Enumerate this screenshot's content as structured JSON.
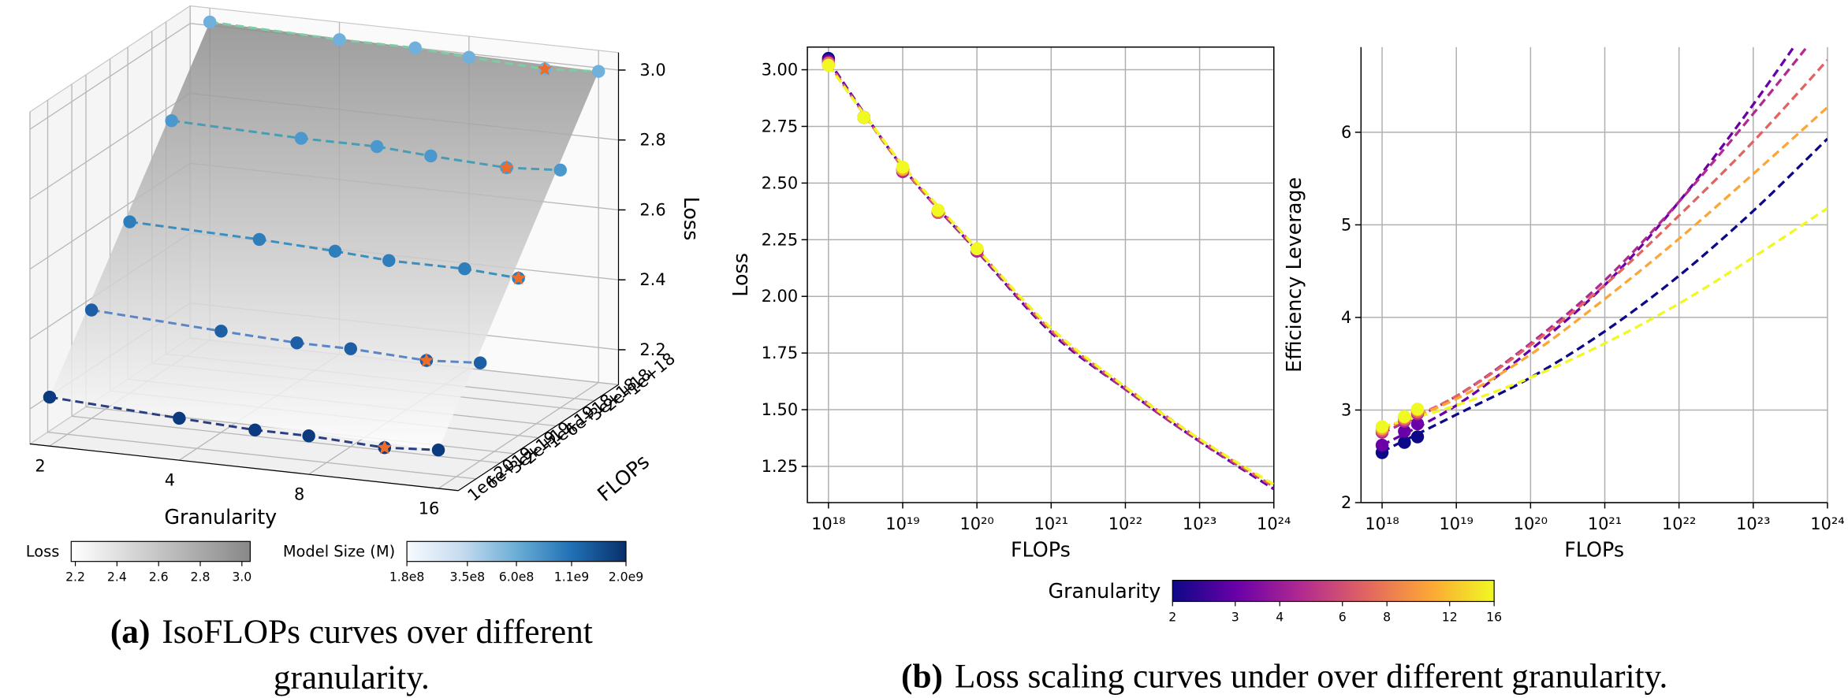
{
  "chart_data": [
    {
      "type": "scatter3d",
      "xlabel": "Granularity",
      "ylabel": "FLOPs",
      "zlabel": "Loss",
      "xscale": "log",
      "xlim": [
        1.8,
        17.8
      ],
      "xticks": [
        2,
        4,
        8,
        16
      ],
      "yscale": "log",
      "ylim": [
        1e+18,
        1e+20
      ],
      "yticks": [
        {
          "value": 1e+18,
          "label": "1e+18"
        },
        {
          "value": 2e+18,
          "label": "2e+18"
        },
        {
          "value": 3e+18,
          "label": "3e+18"
        },
        {
          "value": 6e+18,
          "label": "6e+18"
        },
        {
          "value": 1e+19,
          "label": "1e+19"
        },
        {
          "value": 2e+19,
          "label": "2e+19"
        },
        {
          "value": 3e+19,
          "label": "3e+19"
        },
        {
          "value": 6e+19,
          "label": "6e+19"
        },
        {
          "value": 1e+20,
          "label": "1e+20"
        }
      ],
      "zlim": [
        2.1,
        3.05
      ],
      "zticks": [
        2.2,
        2.4,
        2.6,
        2.8,
        {
          "value": 3,
          "label": "3.0"
        }
      ],
      "x": [
        2,
        4,
        6,
        8,
        12,
        16
      ],
      "star_color": "#ee6c2a",
      "surface_colors": [
        "#8c8c8c",
        "#ffffff"
      ],
      "series": [
        {
          "flops": 1e+18,
          "color": "#6fb1dc",
          "line_color": "#7fcba4",
          "values": [
            3.01,
            3.0,
            3.0,
            2.99,
            2.98,
            2.99
          ],
          "optimal": 12
        },
        {
          "flops": 3e+18,
          "color": "#4a98cd",
          "line_color": "#4a9cb4",
          "values": [
            2.8,
            2.79,
            2.79,
            2.78,
            2.77,
            2.78
          ],
          "optimal": 12
        },
        {
          "flops": 1e+19,
          "color": "#2f7ebc",
          "line_color": "#3a8fbf",
          "values": [
            2.59,
            2.58,
            2.57,
            2.56,
            2.56,
            2.55
          ],
          "optimal": 16
        },
        {
          "flops": 3e+19,
          "color": "#1c5fa5",
          "line_color": "#5b86c4",
          "values": [
            2.41,
            2.39,
            2.38,
            2.38,
            2.37,
            2.38
          ],
          "optimal": 12
        },
        {
          "flops": 1e+20,
          "color": "#0b3a7e",
          "line_color": "#2c3e80",
          "values": [
            2.24,
            2.22,
            2.21,
            2.21,
            2.2,
            2.21
          ],
          "optimal": 12
        }
      ],
      "colorbars": [
        {
          "label": "Loss",
          "lim": [
            2.18,
            3.04
          ],
          "colors": [
            "#ffffff",
            "#888888"
          ],
          "ticks": [
            2.2,
            2.4,
            2.6,
            2.8,
            {
              "value": 3,
              "label": "3.0"
            }
          ]
        },
        {
          "label": "Model Size (M)",
          "scale": "log",
          "lim": [
            180000000.0,
            2000000000.0
          ],
          "colors": [
            "#f7fbff",
            "#c6dbef",
            "#6baed6",
            "#2171b5",
            "#08306b"
          ],
          "ticks": [
            {
              "value": 180000000.0,
              "label": "1.8e8"
            },
            {
              "value": 350000000.0,
              "label": "3.5e8"
            },
            {
              "value": 600000000.0,
              "label": "6.0e8"
            },
            {
              "value": 1100000000.0,
              "label": "1.1e9"
            },
            {
              "value": 2000000000.0,
              "label": "2.0e9"
            }
          ]
        }
      ]
    },
    {
      "type": "line",
      "xlabel": "FLOPs",
      "ylabel": "Loss",
      "box": true,
      "grid": true,
      "xscale": "log",
      "xlim": [
        5.2e+17,
        1e+24
      ],
      "xticks": [
        {
          "value": 1e+18,
          "label": "10¹⁸"
        },
        {
          "value": 1e+19,
          "label": "10¹⁹"
        },
        {
          "value": 1e+20,
          "label": "10²⁰"
        },
        {
          "value": 1e+21,
          "label": "10²¹"
        },
        {
          "value": 1e+22,
          "label": "10²²"
        },
        {
          "value": 1e+23,
          "label": "10²³"
        },
        {
          "value": 1e+24,
          "label": "10²⁴"
        }
      ],
      "ylim": [
        1.09,
        3.1
      ],
      "yticks": [
        1.25,
        {
          "value": 1.5,
          "label": "1.50"
        },
        1.75,
        {
          "value": 2,
          "label": "2.00"
        },
        2.25,
        {
          "value": 2.5,
          "label": "2.50"
        },
        2.75,
        {
          "value": 3,
          "label": "3.00"
        }
      ],
      "x": [
        1e+18,
        3e+18,
        1e+19,
        3e+19,
        1e+20
      ],
      "fit_x": [
        1e+18,
        1e+19,
        1e+20,
        1e+21,
        1e+22,
        1e+23,
        1e+24
      ],
      "series": [
        {
          "color": "#0d0887",
          "values": [
            3.05,
            2.79,
            2.56,
            2.37,
            2.2
          ],
          "fit": [
            3.04,
            2.57,
            2.2,
            1.84,
            1.59,
            1.36,
            1.15
          ]
        },
        {
          "color": "#6a00a8",
          "values": [
            3.04,
            2.79,
            2.56,
            2.37,
            2.2
          ],
          "fit": [
            3.04,
            2.57,
            2.2,
            1.84,
            1.59,
            1.36,
            1.15
          ]
        },
        {
          "color": "#b12a90",
          "values": [
            3.03,
            2.79,
            2.55,
            2.37,
            2.2
          ],
          "fit": [
            3.03,
            2.57,
            2.2,
            1.85,
            1.59,
            1.36,
            1.16
          ]
        },
        {
          "color": "#e16462",
          "values": [
            3.03,
            2.79,
            2.56,
            2.37,
            2.21
          ],
          "fit": [
            3.03,
            2.57,
            2.21,
            1.85,
            1.6,
            1.37,
            1.16
          ]
        },
        {
          "color": "#fca636",
          "values": [
            3.02,
            2.79,
            2.56,
            2.38,
            2.21
          ],
          "fit": [
            3.02,
            2.58,
            2.21,
            1.86,
            1.6,
            1.37,
            1.17
          ]
        },
        {
          "color": "#f0f921",
          "values": [
            3.02,
            2.79,
            2.57,
            2.38,
            2.21
          ],
          "fit": [
            3.02,
            2.58,
            2.21,
            1.86,
            1.6,
            1.37,
            1.17
          ]
        }
      ],
      "colorbar": {
        "label": "Granularity",
        "scale": "log",
        "lim": [
          2,
          16
        ],
        "colors": [
          "#0d0887",
          "#6a00a8",
          "#b12a90",
          "#e16462",
          "#fca636",
          "#f0f921"
        ],
        "ticks": [
          2,
          3,
          4,
          6,
          8,
          12,
          16
        ]
      }
    },
    {
      "type": "line",
      "xlabel": "FLOPs",
      "ylabel": "Efficiency Leverage",
      "box": false,
      "grid": true,
      "xscale": "log",
      "xlim": [
        5.2e+17,
        1e+24
      ],
      "xticks": [
        {
          "value": 1e+18,
          "label": "10¹⁸"
        },
        {
          "value": 1e+19,
          "label": "10¹⁹"
        },
        {
          "value": 1e+20,
          "label": "10²⁰"
        },
        {
          "value": 1e+21,
          "label": "10²¹"
        },
        {
          "value": 1e+22,
          "label": "10²²"
        },
        {
          "value": 1e+23,
          "label": "10²³"
        },
        {
          "value": 1e+24,
          "label": "10²⁴"
        }
      ],
      "ylim": [
        2,
        6.92
      ],
      "yticks": [
        2,
        3,
        4,
        5,
        6
      ],
      "x": [
        1e+18,
        2e+18,
        3e+18
      ],
      "fit_x": [
        1e+18,
        1e+19,
        1e+20,
        1e+21,
        1e+22,
        1e+23,
        1e+24
      ],
      "series": [
        {
          "color": "#0d0887",
          "values": [
            2.54,
            2.65,
            2.71
          ],
          "fit": [
            2.55,
            2.95,
            3.35,
            3.85,
            4.45,
            5.15,
            5.93
          ]
        },
        {
          "color": "#6a00a8",
          "values": [
            2.62,
            2.77,
            2.85
          ],
          "fit": [
            2.62,
            3.05,
            3.65,
            4.35,
            5.25,
            6.3,
            7.45
          ]
        },
        {
          "color": "#b12a90",
          "values": [
            2.76,
            2.88,
            2.96
          ],
          "fit": [
            2.75,
            3.15,
            3.72,
            4.4,
            5.25,
            6.2,
            7.2
          ]
        },
        {
          "color": "#e16462",
          "values": [
            2.78,
            2.9,
            2.98
          ],
          "fit": [
            2.78,
            3.15,
            3.7,
            4.35,
            5.1,
            5.9,
            6.78
          ]
        },
        {
          "color": "#fca636",
          "values": [
            2.8,
            2.92,
            3.0
          ],
          "fit": [
            2.8,
            3.12,
            3.6,
            4.2,
            4.85,
            5.55,
            6.27
          ]
        },
        {
          "color": "#f0f921",
          "values": [
            2.82,
            2.93,
            3.01
          ],
          "fit": [
            2.82,
            3.05,
            3.35,
            3.72,
            4.15,
            4.65,
            5.18
          ]
        }
      ]
    }
  ],
  "captions": [
    {
      "label": "(a)",
      "lines": [
        "IsoFLOPs curves over different",
        "granularity."
      ]
    },
    {
      "label": "(b)",
      "lines": [
        "Loss scaling curves under over different granularity."
      ]
    }
  ]
}
